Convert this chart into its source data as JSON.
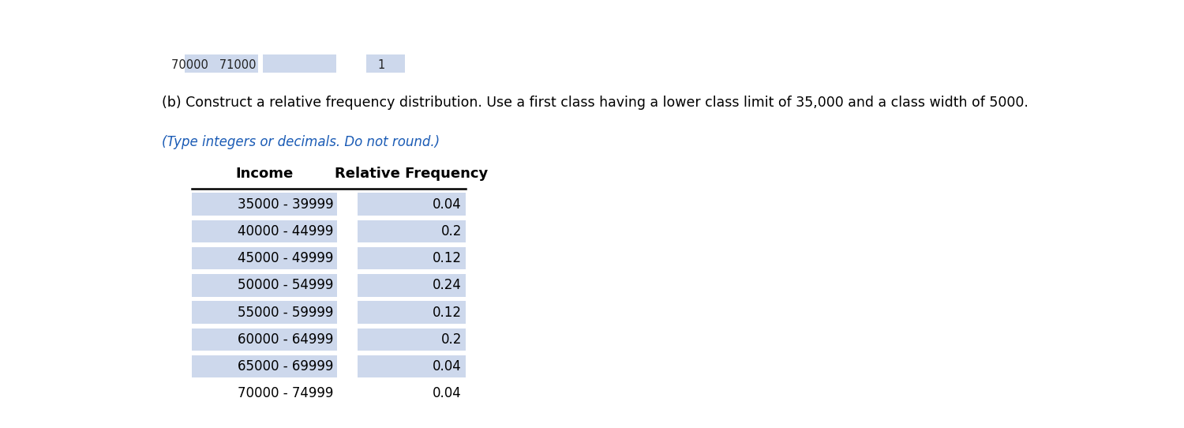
{
  "title_b": "(b) Construct a relative frequency distribution. Use a first class having a lower class limit of 35,000 and a class width of 5000.",
  "subtitle": "(Type integers or decimals. Do not round.)",
  "col1_header": "Income",
  "col2_header": "Relative Frequency",
  "rows": [
    [
      "35000 - 39999",
      "0.04"
    ],
    [
      "40000 - 44999",
      "0.2"
    ],
    [
      "45000 - 49999",
      "0.12"
    ],
    [
      "50000 - 54999",
      "0.24"
    ],
    [
      "55000 - 59999",
      "0.12"
    ],
    [
      "60000 - 64999",
      "0.2"
    ],
    [
      "65000 - 69999",
      "0.04"
    ],
    [
      "70000 - 74999",
      "0.04"
    ]
  ],
  "cell_bg_color": "#cdd8ec",
  "header_line_color": "#000000",
  "title_color": "#000000",
  "subtitle_color": "#1a5bb5",
  "bg_color": "#ffffff",
  "top_snippet_color": "#cdd8ec"
}
